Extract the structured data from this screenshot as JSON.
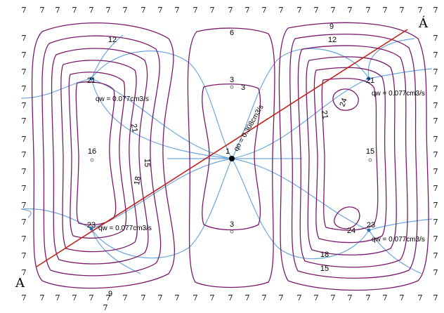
{
  "colors": {
    "contour": "#7a1a6a",
    "streamline": "#6fa8dc",
    "section_line": "#c0241c",
    "well": "#000000",
    "observation": "#2a6fb5"
  },
  "boundary_value": "7",
  "section": {
    "start_label": "A",
    "end_label": "Á"
  },
  "contour_labels": {
    "top_center": "6",
    "left_top": "12",
    "left_bottom": "9",
    "right_top_outer": "9",
    "right_top_inner": "12",
    "center_top_a": "3",
    "center_top_b": "3",
    "center_bottom": "3",
    "center_well": "1",
    "left_21_top": "21",
    "left_21_mid": "21",
    "left_16": "16",
    "left_15": "15",
    "left_18": "18",
    "left_23": "23",
    "right_21_top": "21",
    "right_21_mid": "21",
    "right_24_top": "24",
    "right_15": "15",
    "right_24_bottom": "24",
    "right_23": "23",
    "right_18": "18",
    "right_15_bottom": "15"
  },
  "flows": {
    "injection_left_top": "qw = 0.077cm3/s",
    "injection_left_bottom": "qw = 0.077cm3/s",
    "injection_right_top": "qw = 0.077cm3/s",
    "injection_right_bottom": "qw = 0.077cm3/s",
    "production_center": "qo = 0.308cm3/s"
  }
}
